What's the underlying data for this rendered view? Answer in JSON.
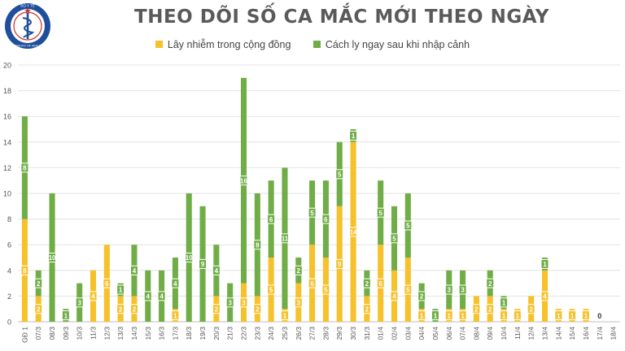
{
  "logo": {
    "text": "BỘ Y TẾ",
    "subtext": "MINISTRY OF HEALTH"
  },
  "chart_data": {
    "type": "bar",
    "stacked": true,
    "title": "THEO DÕI SỐ CA MẮC MỚI THEO NGÀY",
    "legend_position": "top",
    "grid": true,
    "ylim": [
      0,
      20
    ],
    "yticks": [
      0,
      2,
      4,
      6,
      8,
      10,
      12,
      14,
      16,
      18,
      20
    ],
    "categories": [
      "GĐ 1",
      "07/3",
      "08/3",
      "09/3",
      "10/3",
      "11/3",
      "12/3",
      "13/3",
      "14/3",
      "15/3",
      "16/3",
      "17/3",
      "18/3",
      "19/3",
      "20/3",
      "21/3",
      "22/3",
      "23/3",
      "24/3",
      "25/3",
      "26/3",
      "27/3",
      "28/3",
      "29/3",
      "30/3",
      "31/3",
      "01/4",
      "02/4",
      "03/4",
      "04/4",
      "05/4",
      "06/4",
      "07/4",
      "08/4",
      "09/4",
      "10/4",
      "11/4",
      "12/4",
      "13/4",
      "14/4",
      "15/4",
      "16/4",
      "17/4",
      "18/4"
    ],
    "series": [
      {
        "name": "Lây nhiễm trong cộng đồng",
        "color": "#f6c12b",
        "values": [
          8,
          2,
          0,
          0,
          0,
          4,
          6,
          2,
          2,
          0,
          0,
          1,
          0,
          0,
          2,
          0,
          3,
          2,
          5,
          1,
          3,
          6,
          5,
          9,
          14,
          2,
          6,
          4,
          5,
          1,
          0,
          1,
          1,
          2,
          2,
          1,
          1,
          2,
          4,
          1,
          1,
          1,
          0,
          null
        ]
      },
      {
        "name": "Cách ly ngay sau khi nhập cảnh",
        "color": "#70ad47",
        "values": [
          8,
          2,
          10,
          1,
          3,
          0,
          0,
          1,
          4,
          4,
          4,
          4,
          10,
          9,
          4,
          3,
          16,
          8,
          6,
          11,
          2,
          5,
          6,
          5,
          1,
          2,
          5,
          5,
          5,
          2,
          1,
          3,
          3,
          0,
          2,
          1,
          0,
          0,
          1,
          0,
          0,
          0,
          0,
          null
        ]
      }
    ],
    "annotations": [
      {
        "category": "17/4",
        "text": "0"
      }
    ]
  }
}
